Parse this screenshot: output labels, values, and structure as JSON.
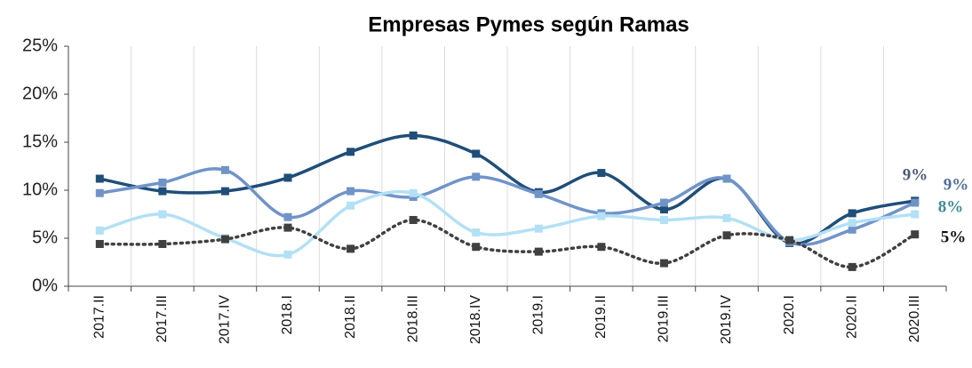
{
  "chart_data": {
    "type": "line",
    "title": "Empresas Pymes según Ramas",
    "categories": [
      "2017.II",
      "2017.III",
      "2017.IV",
      "2018.I",
      "2018.II",
      "2018.III",
      "2018.IV",
      "2019.I",
      "2019.II",
      "2019.III",
      "2019.IV",
      "2020.I",
      "2020.II",
      "2020.III"
    ],
    "series": [
      {
        "color": "#1f4e79",
        "dash": false,
        "values": [
          11.2,
          9.9,
          9.9,
          11.3,
          14.0,
          15.7,
          13.8,
          9.8,
          11.8,
          8.0,
          11.2,
          4.5,
          7.6,
          8.9
        ],
        "value_labels": [
          null,
          null,
          null,
          null,
          null,
          null,
          null,
          null,
          null,
          null,
          null,
          null,
          null,
          "9%"
        ]
      },
      {
        "color": "#7094c8",
        "dash": false,
        "values": [
          9.7,
          10.8,
          12.1,
          7.2,
          9.9,
          9.3,
          11.4,
          9.6,
          7.6,
          8.7,
          11.2,
          4.6,
          5.9,
          8.7
        ],
        "value_labels": [
          null,
          null,
          null,
          null,
          null,
          null,
          null,
          null,
          null,
          null,
          null,
          null,
          null,
          "9%"
        ]
      },
      {
        "color": "#b3e0f5",
        "dash": false,
        "values": [
          5.8,
          7.5,
          5.0,
          3.3,
          8.4,
          9.7,
          5.6,
          6.0,
          7.3,
          6.9,
          7.1,
          4.8,
          6.6,
          7.5
        ],
        "value_labels": [
          null,
          null,
          null,
          null,
          null,
          null,
          null,
          null,
          null,
          null,
          null,
          null,
          null,
          "8%"
        ]
      },
      {
        "color": "#404040",
        "dash": true,
        "values": [
          4.4,
          4.4,
          4.9,
          6.1,
          3.9,
          6.9,
          4.1,
          3.6,
          4.1,
          2.4,
          5.3,
          4.8,
          2.0,
          5.4
        ],
        "value_labels": [
          null,
          null,
          null,
          null,
          null,
          null,
          null,
          null,
          null,
          null,
          null,
          null,
          null,
          "5%"
        ]
      }
    ],
    "ylim": [
      0,
      25
    ],
    "yticks": [
      {
        "value": 0,
        "label": "0%"
      },
      {
        "value": 5,
        "label": "5%"
      },
      {
        "value": 10,
        "label": "10%"
      },
      {
        "value": 15,
        "label": "15%"
      },
      {
        "value": 20,
        "label": "20%"
      },
      {
        "value": 25,
        "label": "25%"
      }
    ],
    "grid": true
  }
}
